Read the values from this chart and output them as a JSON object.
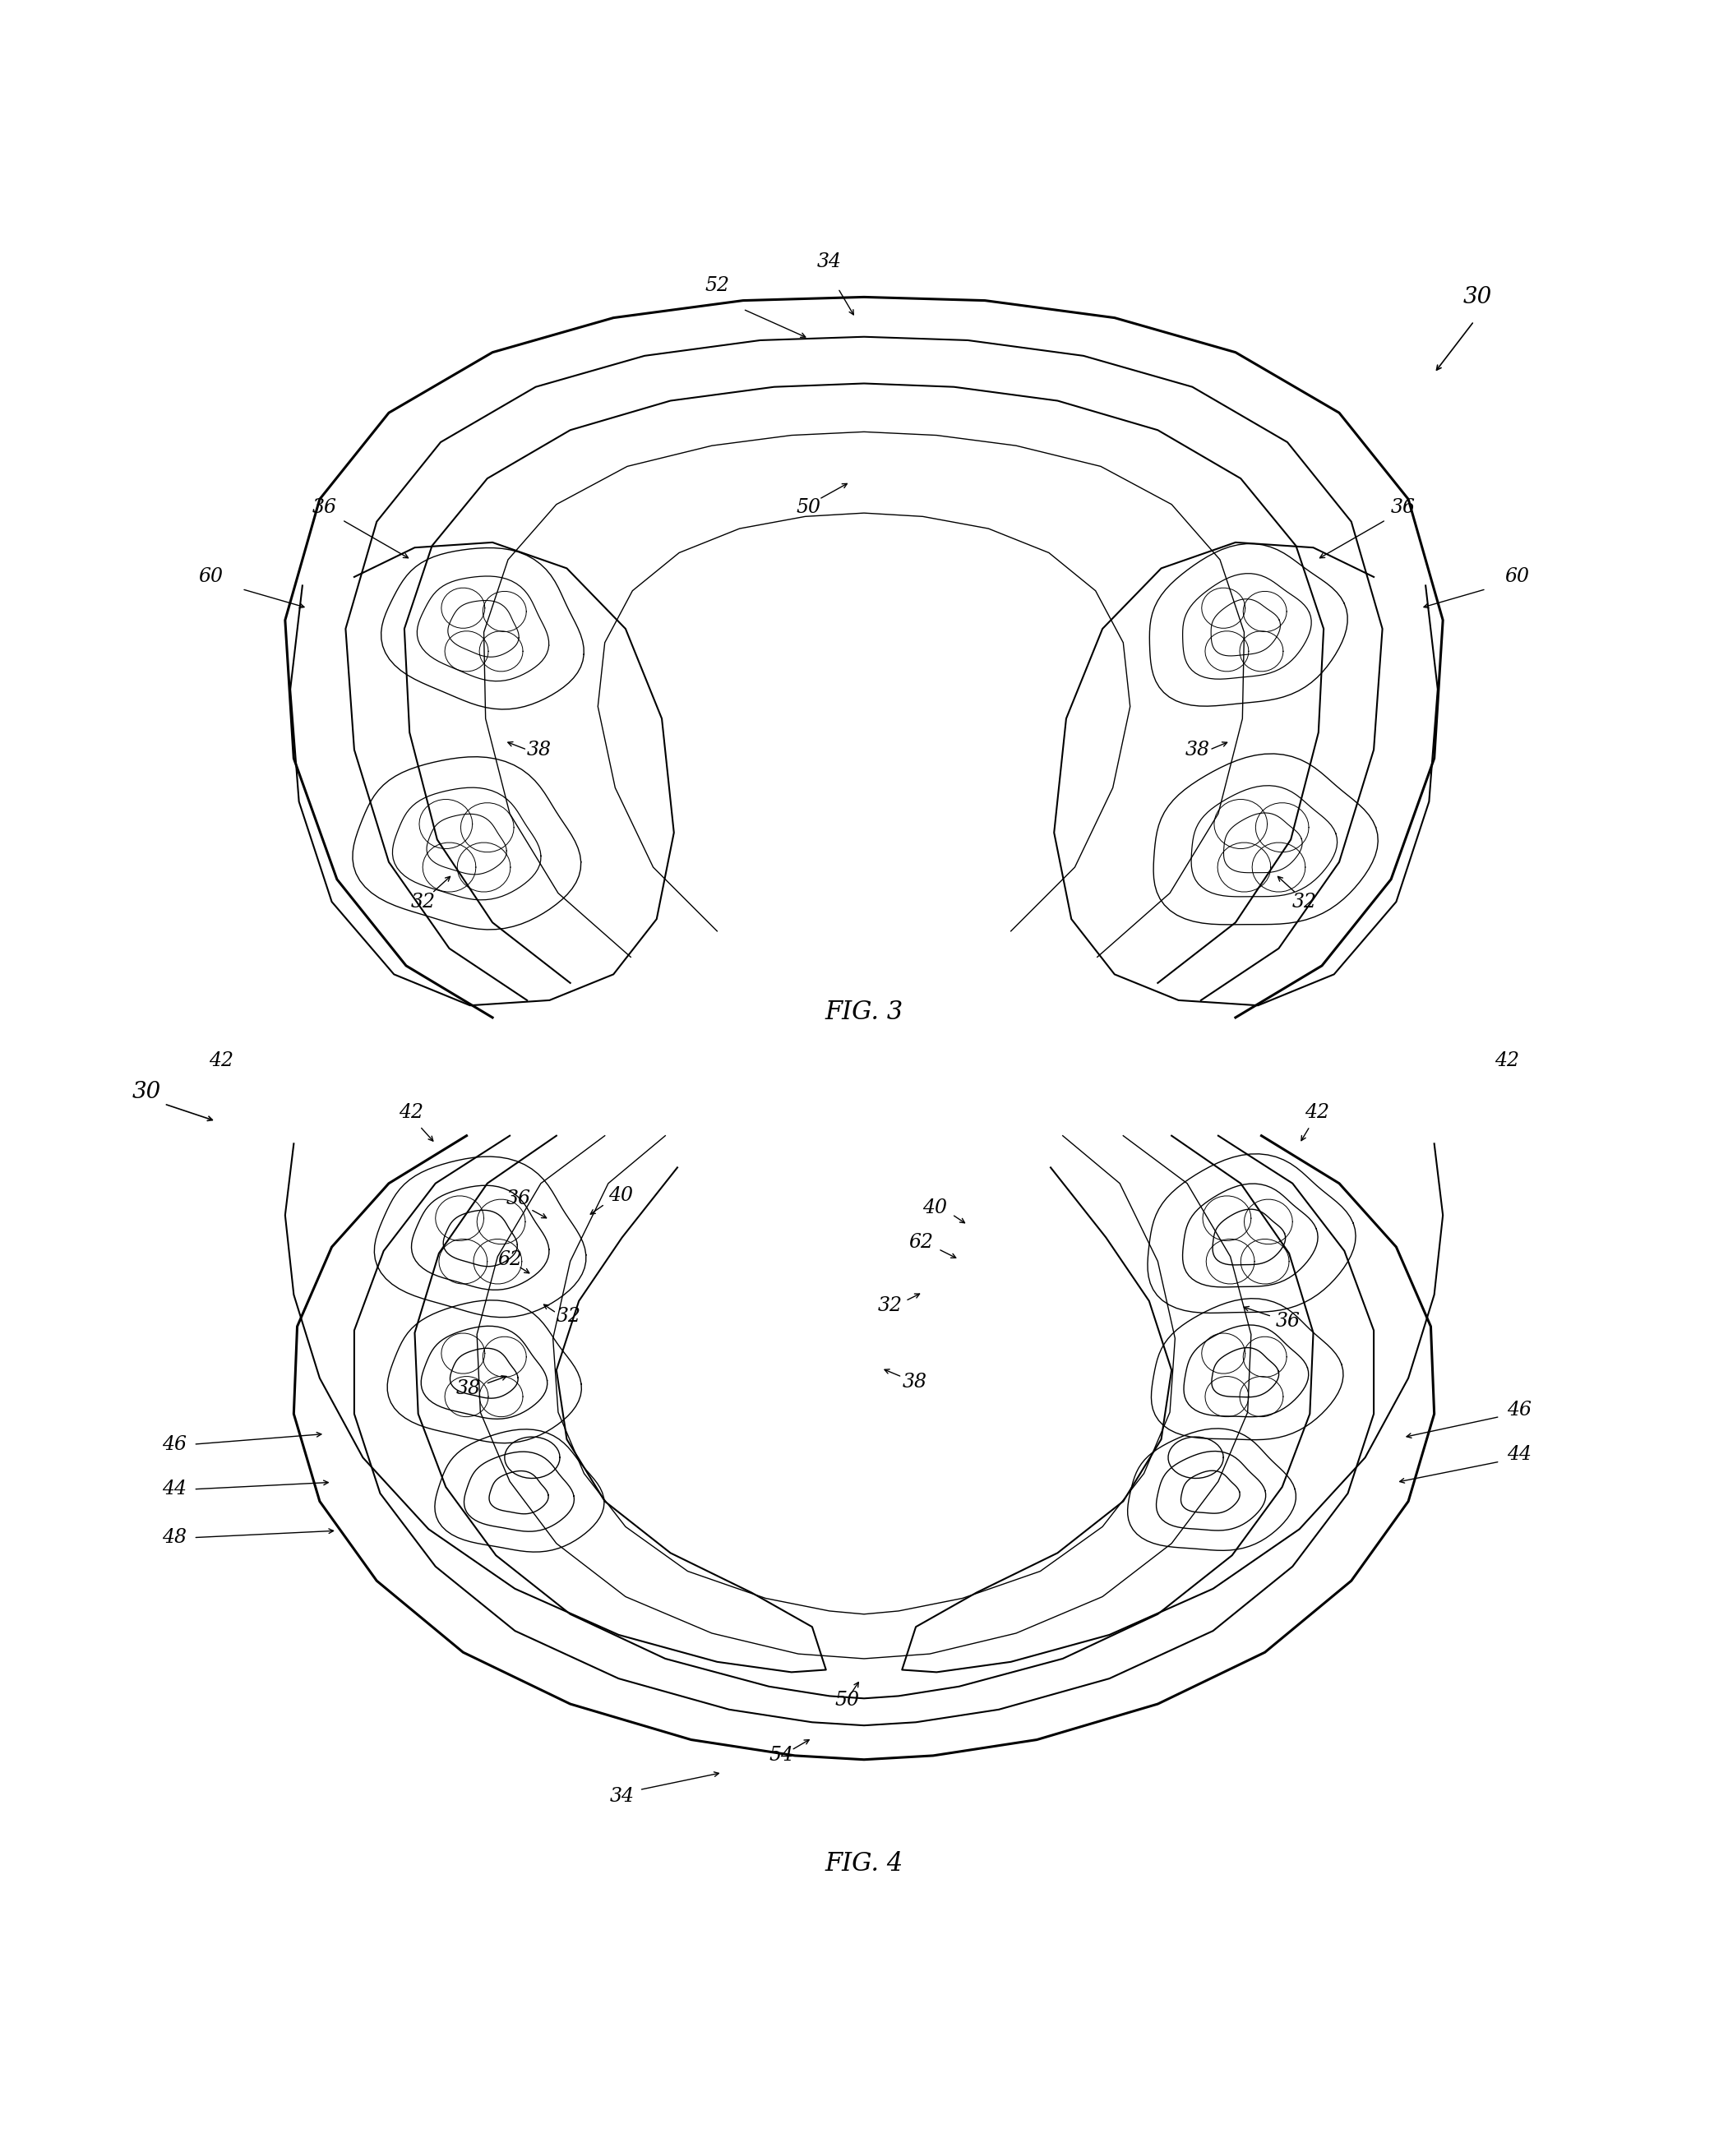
{
  "background_color": "#ffffff",
  "line_color": "#000000",
  "fig3_label": "FIG. 3",
  "fig4_label": "FIG. 4",
  "lw_thick": 2.2,
  "lw_med": 1.5,
  "lw_thin": 1.0,
  "fontsize_label": 22,
  "fontsize_ref": 17,
  "fontsize_main": 20
}
